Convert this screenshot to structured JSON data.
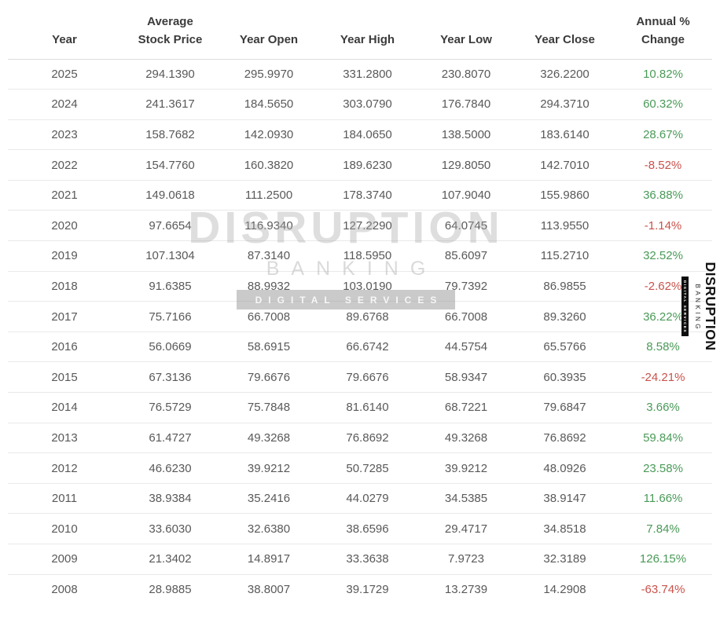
{
  "colors": {
    "positive": "#4a9a58",
    "negative": "#c9524b",
    "header_text": "#3b3b3b",
    "body_text": "#595959",
    "row_line": "#e9e9e9"
  },
  "watermark": {
    "title": "DISRUPTION",
    "subtitle": "BANKING",
    "badge": "DIGITAL SERVICES"
  },
  "side_logo": {
    "title": "DISRUPTION",
    "subtitle": "BANKING",
    "badge": "DIGITAL SERVICES"
  },
  "chart_data": {
    "type": "table",
    "columns": [
      {
        "key": "year",
        "label": "Year",
        "lines": [
          "Year"
        ]
      },
      {
        "key": "average_stock_price",
        "label": "Average Stock Price",
        "lines": [
          "Average",
          "Stock Price"
        ]
      },
      {
        "key": "year_open",
        "label": "Year Open",
        "lines": [
          "Year Open"
        ]
      },
      {
        "key": "year_high",
        "label": "Year High",
        "lines": [
          "Year High"
        ]
      },
      {
        "key": "year_low",
        "label": "Year Low",
        "lines": [
          "Year Low"
        ]
      },
      {
        "key": "year_close",
        "label": "Year Close",
        "lines": [
          "Year Close"
        ]
      },
      {
        "key": "annual_change",
        "label": "Annual % Change",
        "lines": [
          "Annual %",
          "Change"
        ]
      }
    ],
    "rows": [
      {
        "year": "2025",
        "average_stock_price": "294.1390",
        "year_open": "295.9970",
        "year_high": "331.2800",
        "year_low": "230.8070",
        "year_close": "326.2200",
        "annual_change": "10.82%",
        "change_direction": "positive"
      },
      {
        "year": "2024",
        "average_stock_price": "241.3617",
        "year_open": "184.5650",
        "year_high": "303.0790",
        "year_low": "176.7840",
        "year_close": "294.3710",
        "annual_change": "60.32%",
        "change_direction": "positive"
      },
      {
        "year": "2023",
        "average_stock_price": "158.7682",
        "year_open": "142.0930",
        "year_high": "184.0650",
        "year_low": "138.5000",
        "year_close": "183.6140",
        "annual_change": "28.67%",
        "change_direction": "positive"
      },
      {
        "year": "2022",
        "average_stock_price": "154.7760",
        "year_open": "160.3820",
        "year_high": "189.6230",
        "year_low": "129.8050",
        "year_close": "142.7010",
        "annual_change": "-8.52%",
        "change_direction": "negative"
      },
      {
        "year": "2021",
        "average_stock_price": "149.0618",
        "year_open": "111.2500",
        "year_high": "178.3740",
        "year_low": "107.9040",
        "year_close": "155.9860",
        "annual_change": "36.88%",
        "change_direction": "positive"
      },
      {
        "year": "2020",
        "average_stock_price": "97.6654",
        "year_open": "116.9340",
        "year_high": "127.2290",
        "year_low": "64.0745",
        "year_close": "113.9550",
        "annual_change": "-1.14%",
        "change_direction": "negative"
      },
      {
        "year": "2019",
        "average_stock_price": "107.1304",
        "year_open": "87.3140",
        "year_high": "118.5950",
        "year_low": "85.6097",
        "year_close": "115.2710",
        "annual_change": "32.52%",
        "change_direction": "positive"
      },
      {
        "year": "2018",
        "average_stock_price": "91.6385",
        "year_open": "88.9932",
        "year_high": "103.0190",
        "year_low": "79.7392",
        "year_close": "86.9855",
        "annual_change": "-2.62%",
        "change_direction": "negative"
      },
      {
        "year": "2017",
        "average_stock_price": "75.7166",
        "year_open": "66.7008",
        "year_high": "89.6768",
        "year_low": "66.7008",
        "year_close": "89.3260",
        "annual_change": "36.22%",
        "change_direction": "positive"
      },
      {
        "year": "2016",
        "average_stock_price": "56.0669",
        "year_open": "58.6915",
        "year_high": "66.6742",
        "year_low": "44.5754",
        "year_close": "65.5766",
        "annual_change": "8.58%",
        "change_direction": "positive"
      },
      {
        "year": "2015",
        "average_stock_price": "67.3136",
        "year_open": "79.6676",
        "year_high": "79.6676",
        "year_low": "58.9347",
        "year_close": "60.3935",
        "annual_change": "-24.21%",
        "change_direction": "negative"
      },
      {
        "year": "2014",
        "average_stock_price": "76.5729",
        "year_open": "75.7848",
        "year_high": "81.6140",
        "year_low": "68.7221",
        "year_close": "79.6847",
        "annual_change": "3.66%",
        "change_direction": "positive"
      },
      {
        "year": "2013",
        "average_stock_price": "61.4727",
        "year_open": "49.3268",
        "year_high": "76.8692",
        "year_low": "49.3268",
        "year_close": "76.8692",
        "annual_change": "59.84%",
        "change_direction": "positive"
      },
      {
        "year": "2012",
        "average_stock_price": "46.6230",
        "year_open": "39.9212",
        "year_high": "50.7285",
        "year_low": "39.9212",
        "year_close": "48.0926",
        "annual_change": "23.58%",
        "change_direction": "positive"
      },
      {
        "year": "2011",
        "average_stock_price": "38.9384",
        "year_open": "35.2416",
        "year_high": "44.0279",
        "year_low": "34.5385",
        "year_close": "38.9147",
        "annual_change": "11.66%",
        "change_direction": "positive"
      },
      {
        "year": "2010",
        "average_stock_price": "33.6030",
        "year_open": "32.6380",
        "year_high": "38.6596",
        "year_low": "29.4717",
        "year_close": "34.8518",
        "annual_change": "7.84%",
        "change_direction": "positive"
      },
      {
        "year": "2009",
        "average_stock_price": "21.3402",
        "year_open": "14.8917",
        "year_high": "33.3638",
        "year_low": "7.9723",
        "year_close": "32.3189",
        "annual_change": "126.15%",
        "change_direction": "positive"
      },
      {
        "year": "2008",
        "average_stock_price": "28.9885",
        "year_open": "38.8007",
        "year_high": "39.1729",
        "year_low": "13.2739",
        "year_close": "14.2908",
        "annual_change": "-63.74%",
        "change_direction": "negative"
      }
    ]
  }
}
